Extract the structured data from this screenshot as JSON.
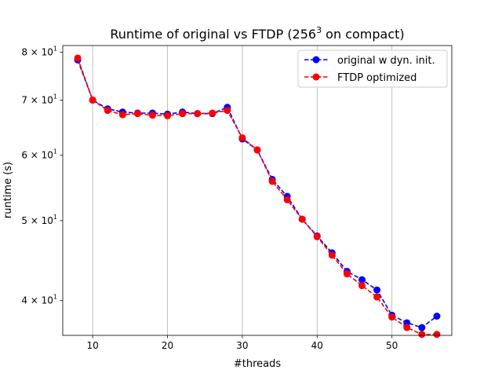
{
  "chart_data": {
    "type": "line",
    "title": "Runtime of original vs FTDP (256",
    "title_sup": "3",
    "title_suffix": " on compact)",
    "xlabel": "#threads",
    "ylabel": "runtime (s)",
    "xlim": [
      6,
      58
    ],
    "ylim": [
      36.3,
      81.5
    ],
    "yscale": "log",
    "grid": "vertical",
    "legend_position": "top-right",
    "x_ticks": [
      10,
      20,
      30,
      40,
      50
    ],
    "y_ticks": [
      {
        "value": 80,
        "base": "8 × 10",
        "exp": "1"
      },
      {
        "value": 70,
        "base": "7 × 10",
        "exp": "1"
      },
      {
        "value": 60,
        "base": "6 × 10",
        "exp": "1"
      },
      {
        "value": 50,
        "base": "5 × 10",
        "exp": "1"
      },
      {
        "value": 40,
        "base": "4 × 10",
        "exp": "1"
      }
    ],
    "x": [
      8,
      10,
      12,
      14,
      16,
      18,
      20,
      22,
      24,
      26,
      28,
      30,
      32,
      34,
      36,
      38,
      40,
      42,
      44,
      46,
      48,
      50,
      52,
      54,
      56
    ],
    "series": [
      {
        "name": "original w dyn. init.",
        "color": "#0000ff",
        "values": [
          78.3,
          70.0,
          68.3,
          67.7,
          67.5,
          67.5,
          67.3,
          67.7,
          67.4,
          67.4,
          68.6,
          62.8,
          60.9,
          56.1,
          53.5,
          50.2,
          47.9,
          45.7,
          43.4,
          42.4,
          41.2,
          38.4,
          37.6,
          37.1,
          38.3
        ]
      },
      {
        "name": "FTDP optimized",
        "color": "#ff0000",
        "values": [
          78.7,
          70.0,
          68.0,
          67.2,
          67.4,
          67.1,
          67.0,
          67.4,
          67.4,
          67.5,
          68.0,
          63.0,
          60.9,
          55.8,
          53.0,
          50.2,
          47.8,
          45.4,
          43.1,
          41.7,
          40.4,
          38.2,
          37.1,
          36.4,
          36.4
        ]
      }
    ]
  }
}
